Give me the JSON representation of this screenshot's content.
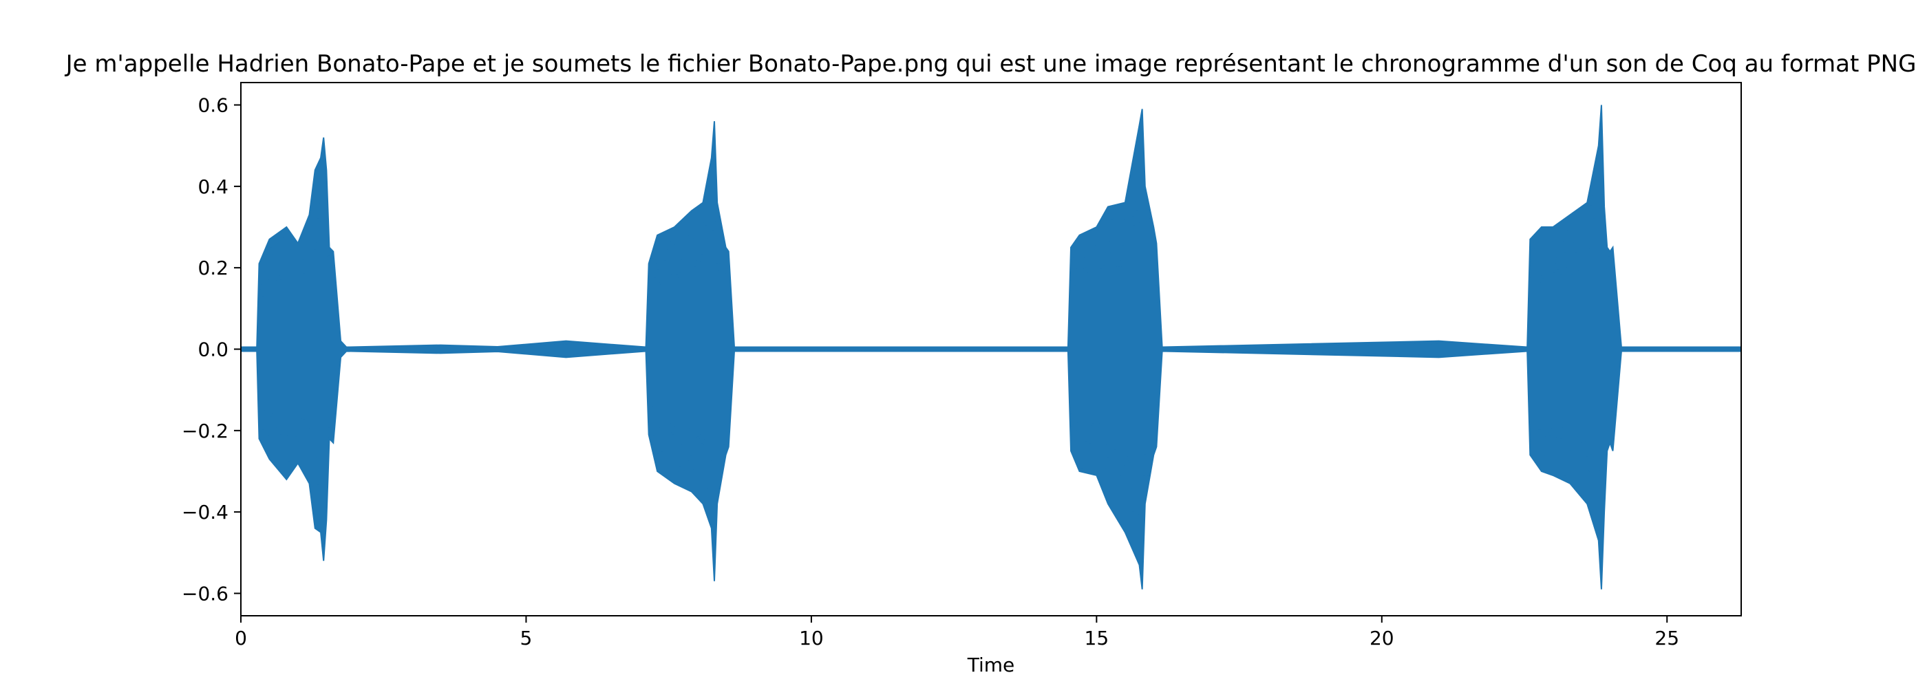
{
  "chart_data": {
    "type": "area",
    "title": "Je m'appelle Hadrien Bonato-Pape et je soumets le fichier Bonato-Pape.png qui est une image représentant le chronogramme d'un son de Coq au format PNG",
    "xlabel": "Time",
    "ylabel": "",
    "xlim": [
      0,
      26.3
    ],
    "ylim": [
      -0.655,
      0.655
    ],
    "x_ticks": [
      0,
      5,
      10,
      15,
      20,
      25
    ],
    "x_tick_labels": [
      "0",
      "5",
      "10",
      "15",
      "20",
      "25"
    ],
    "y_ticks": [
      0.6,
      0.4,
      0.2,
      0.0,
      -0.2,
      -0.4,
      -0.6
    ],
    "y_tick_labels": [
      "0.6",
      "0.4",
      "0.2",
      "0.0",
      "−0.2",
      "−0.4",
      "−0.6"
    ],
    "grid": false,
    "series_color": "#1f77b4",
    "series": [
      {
        "description": "waveform envelope (max / min amplitude over time)",
        "x": [
          0,
          0.28,
          0.32,
          0.5,
          0.8,
          1.0,
          1.2,
          1.3,
          1.4,
          1.45,
          1.5,
          1.55,
          1.62,
          1.75,
          1.85,
          3.5,
          4.5,
          5.7,
          7.1,
          7.15,
          7.3,
          7.6,
          7.9,
          8.1,
          8.25,
          8.3,
          8.35,
          8.5,
          8.55,
          8.65,
          10.0,
          14.5,
          14.55,
          14.7,
          15.0,
          15.2,
          15.5,
          15.75,
          15.8,
          15.85,
          16.0,
          16.05,
          16.15,
          21.0,
          22.55,
          22.6,
          22.8,
          23.0,
          23.3,
          23.6,
          23.8,
          23.85,
          23.9,
          23.95,
          24.0,
          24.05,
          24.2,
          26.3
        ],
        "upper": [
          0.005,
          0.005,
          0.21,
          0.27,
          0.3,
          0.26,
          0.33,
          0.44,
          0.47,
          0.52,
          0.44,
          0.25,
          0.24,
          0.02,
          0.005,
          0.01,
          0.006,
          0.02,
          0.005,
          0.21,
          0.28,
          0.3,
          0.34,
          0.36,
          0.47,
          0.56,
          0.36,
          0.25,
          0.24,
          0.005,
          0.005,
          0.005,
          0.25,
          0.28,
          0.3,
          0.35,
          0.36,
          0.55,
          0.59,
          0.4,
          0.3,
          0.26,
          0.005,
          0.02,
          0.005,
          0.27,
          0.3,
          0.3,
          0.33,
          0.36,
          0.5,
          0.6,
          0.35,
          0.25,
          0.24,
          0.25,
          0.005,
          0.005
        ],
        "lower": [
          -0.005,
          -0.005,
          -0.22,
          -0.27,
          -0.32,
          -0.28,
          -0.33,
          -0.44,
          -0.45,
          -0.52,
          -0.42,
          -0.22,
          -0.23,
          -0.02,
          -0.005,
          -0.01,
          -0.006,
          -0.02,
          -0.005,
          -0.21,
          -0.3,
          -0.33,
          -0.35,
          -0.38,
          -0.44,
          -0.57,
          -0.38,
          -0.26,
          -0.24,
          -0.005,
          -0.005,
          -0.005,
          -0.25,
          -0.3,
          -0.31,
          -0.38,
          -0.45,
          -0.53,
          -0.59,
          -0.38,
          -0.26,
          -0.24,
          -0.005,
          -0.02,
          -0.005,
          -0.26,
          -0.3,
          -0.31,
          -0.33,
          -0.38,
          -0.47,
          -0.59,
          -0.4,
          -0.25,
          -0.23,
          -0.25,
          -0.005,
          -0.005
        ]
      }
    ]
  }
}
